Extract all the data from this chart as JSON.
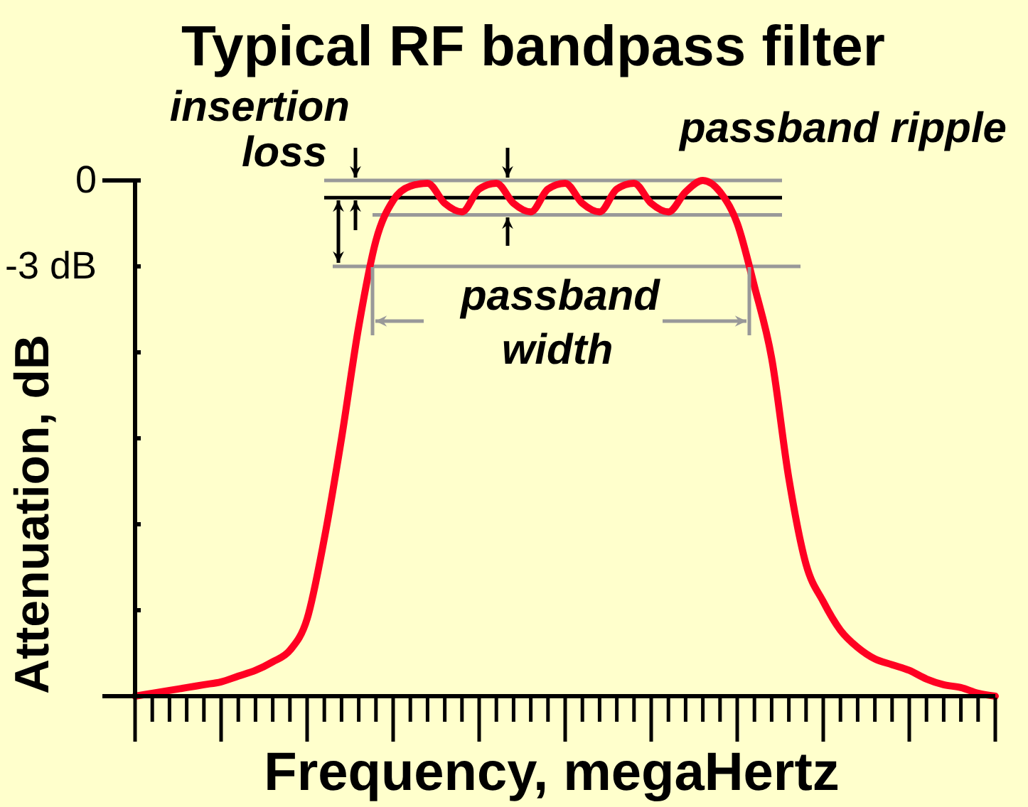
{
  "chart_data": {
    "type": "line",
    "title": "Typical RF bandpass filter",
    "xlabel": "Frequency, megaHertz",
    "ylabel": "Attenuation, dB",
    "categories": [
      null,
      null,
      null,
      null,
      null,
      null,
      null,
      null,
      null,
      null,
      null,
      null,
      null,
      null,
      null,
      null,
      null,
      null,
      null,
      null,
      null,
      null,
      null,
      null,
      null,
      null,
      null,
      null,
      null,
      null,
      null,
      null,
      null,
      null,
      null,
      null,
      null,
      null,
      null,
      null,
      null,
      null,
      null,
      null,
      null,
      null,
      null,
      null,
      null,
      null,
      null
    ],
    "series": [
      {
        "color": "#ff0022",
        "values": [
          -18.0,
          -17.9,
          -17.8,
          -17.7,
          -17.6,
          -17.5,
          -17.3,
          -17.1,
          -16.8,
          -16.4,
          -15.3,
          -12.5,
          -9.0,
          -5.1,
          -2.1,
          -0.7,
          -0.2,
          -0.1,
          -0.8,
          -1.1,
          -0.3,
          -0.1,
          -0.8,
          -1.1,
          -0.3,
          -0.1,
          -0.8,
          -1.1,
          -0.3,
          -0.1,
          -0.8,
          -1.1,
          -0.4,
          0,
          -0.4,
          -1.5,
          -3.7,
          -6.2,
          -10.4,
          -13.4,
          -14.7,
          -15.7,
          -16.3,
          -16.7,
          -16.9,
          -17.1,
          -17.4,
          -17.6,
          -17.7,
          -17.9,
          -18.0
        ]
      }
    ],
    "ylim": [
      -18,
      0
    ],
    "yticks": [
      0,
      {
        "value": -3,
        "label": "-3 dB"
      },
      {
        "value": -6,
        "label": null
      },
      {
        "value": -9,
        "label": null
      },
      {
        "value": -12,
        "label": null
      },
      {
        "value": -15,
        "label": null
      },
      {
        "value": -18,
        "label": null
      }
    ],
    "ref_lines": [
      {
        "axis": "y",
        "value": 0,
        "color": "#999999"
      },
      {
        "axis": "y",
        "value": -0.6,
        "color": "#000000"
      },
      {
        "axis": "y",
        "value": -1.2,
        "color": "#999999"
      },
      {
        "axis": "y",
        "value": -3,
        "color": "#999999"
      }
    ],
    "annotations": [
      "insertion loss",
      "passband ripple",
      "passband width"
    ],
    "tick_labels": "y",
    "grid": false,
    "marker": "none",
    "line_style": "solid"
  }
}
